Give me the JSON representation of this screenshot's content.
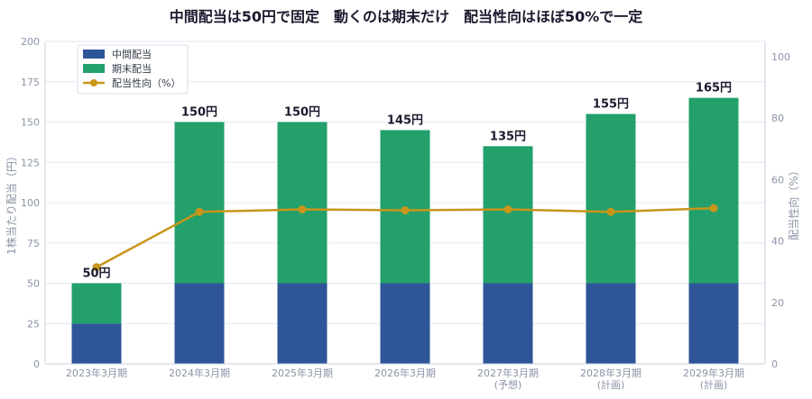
{
  "chart_data": {
    "type": "bar",
    "title": "中間配当は50円で固定　動くのは期末だけ　配当性向はほぼ50%で一定",
    "categories": [
      "2023年3月期",
      "2024年3月期",
      "2025年3月期",
      "2026年3月期",
      "2027年3月期",
      "2028年3月期",
      "2029年3月期"
    ],
    "category_notes": [
      "",
      "",
      "",
      "",
      "(予想)",
      "(計画)",
      "(計画)"
    ],
    "series": [
      {
        "name": "中間配当",
        "type": "bar",
        "stack": "dps",
        "values": [
          25,
          50,
          50,
          50,
          50,
          50,
          50
        ],
        "color": "#2e5597"
      },
      {
        "name": "期末配当",
        "type": "bar",
        "stack": "dps",
        "values": [
          25,
          100,
          100,
          95,
          85,
          105,
          115
        ],
        "color": "#23a06b"
      },
      {
        "name": "配当性向（%）",
        "type": "line",
        "axis": "right",
        "values": [
          31.5,
          49.5,
          50.3,
          50.0,
          50.3,
          49.5,
          50.7
        ],
        "color": "#c9961b"
      }
    ],
    "totals_labels": [
      "50円",
      "150円",
      "150円",
      "145円",
      "135円",
      "155円",
      "165円"
    ],
    "ylabel": "1株当たり配当（円）",
    "ylabel_right": "配当性向（%）",
    "ylim": [
      0,
      200
    ],
    "ylim_right": [
      0,
      105
    ],
    "yticks": [
      0,
      25,
      50,
      75,
      100,
      125,
      150,
      175,
      200
    ],
    "yticks_right": [
      0,
      20,
      40,
      60,
      80,
      100
    ],
    "grid": true,
    "legend_position": "top-left"
  }
}
